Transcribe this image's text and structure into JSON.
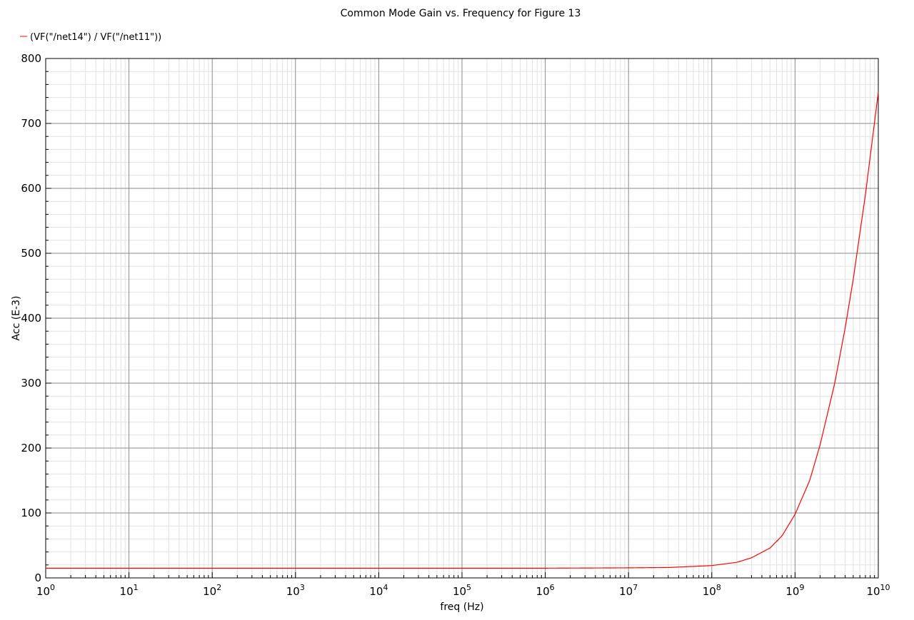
{
  "chart_data": {
    "type": "line",
    "title": "Common Mode Gain vs. Frequency for Figure 13",
    "xlabel": "freq (Hz)",
    "ylabel": "Acc (E-3)",
    "x_scale": "log",
    "xlim": [
      1,
      10000000000
    ],
    "ylim": [
      0,
      800
    ],
    "grid": true,
    "legend_position": "top-left",
    "x_ticks": [
      {
        "base": "10",
        "exp": "0"
      },
      {
        "base": "10",
        "exp": "1"
      },
      {
        "base": "10",
        "exp": "2"
      },
      {
        "base": "10",
        "exp": "3"
      },
      {
        "base": "10",
        "exp": "4"
      },
      {
        "base": "10",
        "exp": "5"
      },
      {
        "base": "10",
        "exp": "6"
      },
      {
        "base": "10",
        "exp": "7"
      },
      {
        "base": "10",
        "exp": "8"
      },
      {
        "base": "10",
        "exp": "9"
      },
      {
        "base": "10",
        "exp": "10"
      }
    ],
    "y_ticks": [
      "0",
      "100",
      "200",
      "300",
      "400",
      "500",
      "600",
      "700",
      "800"
    ],
    "series": [
      {
        "name": "(VF(\"/net14\") / VF(\"/net11\"))",
        "color": "#ff0000",
        "x": [
          1,
          10,
          100,
          1000,
          10000,
          100000,
          1000000,
          10000000,
          30000000,
          100000000,
          200000000,
          300000000,
          500000000,
          700000000,
          1000000000,
          1500000000,
          2000000000,
          3000000000,
          4000000000,
          5000000000,
          7000000000,
          10000000000
        ],
        "y": [
          15,
          15,
          15,
          15,
          15,
          15,
          15,
          15.5,
          16,
          19,
          24,
          31,
          46,
          65,
          98,
          150,
          205,
          300,
          385,
          460,
          590,
          748
        ]
      }
    ]
  }
}
